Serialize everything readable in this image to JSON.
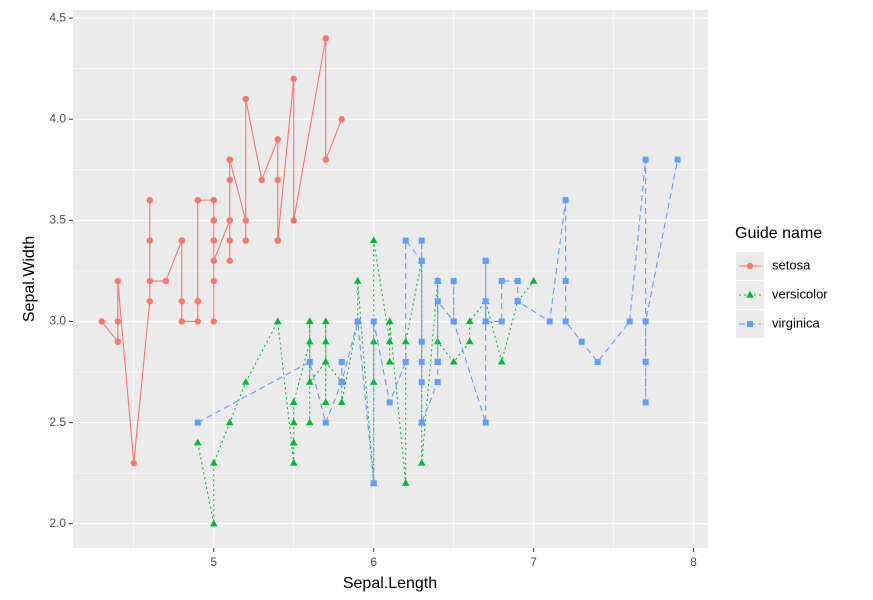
{
  "chart_data": {
    "type": "line",
    "x_label": "Sepal.Length",
    "y_label": "Sepal.Width",
    "legend_title": "Guide name",
    "legend_position": "right",
    "grid": true,
    "xlim": [
      4.12,
      8.09
    ],
    "ylim": [
      1.88,
      4.54
    ],
    "xticks": [
      5,
      6,
      7,
      8
    ],
    "yticks": [
      {
        "value": 2.0,
        "label": "2.0"
      },
      {
        "value": 2.5,
        "label": "2.5"
      },
      {
        "value": 3.0,
        "label": "3.0"
      },
      {
        "value": 3.5,
        "label": "3.5"
      },
      {
        "value": 4.0,
        "label": "4.0"
      },
      {
        "value": 4.5,
        "label": "4.5"
      }
    ],
    "series": [
      {
        "name": "setosa",
        "color": "#F8766D",
        "shape": "circle",
        "linetype": "solid",
        "x": [
          4.3,
          4.4,
          4.4,
          4.4,
          4.5,
          4.6,
          4.6,
          4.6,
          4.6,
          4.7,
          4.7,
          4.8,
          4.8,
          4.8,
          4.8,
          4.8,
          4.9,
          4.9,
          4.9,
          4.9,
          5.0,
          5.0,
          5.0,
          5.0,
          5.0,
          5.0,
          5.0,
          5.0,
          5.1,
          5.1,
          5.1,
          5.1,
          5.1,
          5.1,
          5.1,
          5.1,
          5.2,
          5.2,
          5.2,
          5.3,
          5.4,
          5.4,
          5.4,
          5.4,
          5.4,
          5.5,
          5.5,
          5.7,
          5.7,
          5.8
        ],
        "values": [
          3.0,
          2.9,
          3.0,
          3.2,
          2.3,
          3.1,
          3.4,
          3.6,
          3.2,
          3.2,
          3.2,
          3.4,
          3.0,
          3.4,
          3.1,
          3.0,
          3.0,
          3.1,
          3.1,
          3.6,
          3.6,
          3.4,
          3.0,
          3.4,
          3.2,
          3.5,
          3.5,
          3.3,
          3.5,
          3.5,
          3.8,
          3.7,
          3.3,
          3.4,
          3.8,
          3.8,
          3.5,
          3.4,
          4.1,
          3.7,
          3.9,
          3.7,
          3.9,
          3.4,
          3.4,
          4.2,
          3.5,
          4.4,
          3.8,
          4.0
        ]
      },
      {
        "name": "versicolor",
        "color": "#00BA38",
        "shape": "triangle",
        "linetype": "dotted",
        "x": [
          4.9,
          5.0,
          5.0,
          5.1,
          5.2,
          5.4,
          5.5,
          5.5,
          5.5,
          5.5,
          5.5,
          5.6,
          5.6,
          5.6,
          5.6,
          5.6,
          5.7,
          5.7,
          5.7,
          5.7,
          5.7,
          5.8,
          5.8,
          5.8,
          5.9,
          5.9,
          6.0,
          6.0,
          6.0,
          6.0,
          6.1,
          6.1,
          6.1,
          6.1,
          6.2,
          6.2,
          6.3,
          6.3,
          6.3,
          6.4,
          6.4,
          6.5,
          6.6,
          6.6,
          6.7,
          6.7,
          6.7,
          6.8,
          6.9,
          7.0
        ],
        "values": [
          2.4,
          2.0,
          2.3,
          2.5,
          2.7,
          3.0,
          2.3,
          2.4,
          2.4,
          2.5,
          2.6,
          2.9,
          3.0,
          2.5,
          3.0,
          2.7,
          2.8,
          2.6,
          3.0,
          2.9,
          2.8,
          2.7,
          2.7,
          2.6,
          3.0,
          3.2,
          2.2,
          2.9,
          2.7,
          3.4,
          2.9,
          2.8,
          2.8,
          3.0,
          2.2,
          2.9,
          3.3,
          2.5,
          2.3,
          3.2,
          2.9,
          2.8,
          2.9,
          3.0,
          3.1,
          3.0,
          3.1,
          2.8,
          3.1,
          3.2
        ]
      },
      {
        "name": "virginica",
        "color": "#619CFF",
        "shape": "square",
        "linetype": "dashed",
        "x": [
          4.9,
          5.6,
          5.7,
          5.8,
          5.8,
          5.8,
          5.9,
          6.0,
          6.0,
          6.1,
          6.2,
          6.2,
          6.3,
          6.3,
          6.3,
          6.3,
          6.3,
          6.3,
          6.4,
          6.4,
          6.4,
          6.4,
          6.4,
          6.4,
          6.5,
          6.5,
          6.5,
          6.5,
          6.7,
          6.7,
          6.7,
          6.7,
          6.7,
          6.8,
          6.8,
          6.9,
          6.9,
          6.9,
          7.1,
          7.2,
          7.2,
          7.2,
          7.3,
          7.4,
          7.6,
          7.7,
          7.7,
          7.7,
          7.7,
          7.9
        ],
        "values": [
          2.5,
          2.8,
          2.5,
          2.7,
          2.8,
          2.7,
          3.0,
          2.2,
          3.0,
          2.6,
          2.8,
          3.4,
          3.3,
          2.9,
          2.7,
          2.8,
          3.4,
          2.5,
          2.7,
          3.2,
          2.8,
          2.8,
          2.8,
          3.1,
          3.0,
          3.2,
          3.0,
          3.0,
          2.5,
          3.3,
          3.1,
          3.3,
          3.0,
          3.0,
          3.2,
          3.2,
          3.1,
          3.1,
          3.0,
          3.6,
          3.2,
          3.0,
          2.9,
          2.8,
          3.0,
          3.8,
          2.6,
          2.8,
          3.0,
          3.8
        ]
      }
    ]
  }
}
